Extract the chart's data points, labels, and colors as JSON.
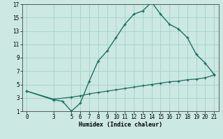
{
  "xlabel": "Humidex (Indice chaleur)",
  "bg_color": "#cbe8e3",
  "grid_color": "#a8d4cc",
  "line_color": "#1e6e62",
  "curve1_x": [
    0,
    3,
    4,
    5,
    6,
    7,
    8,
    9,
    10,
    11,
    12,
    13,
    14,
    15,
    16,
    17,
    18,
    19,
    20,
    21
  ],
  "curve1_y": [
    4.0,
    2.7,
    2.5,
    1.0,
    2.2,
    5.5,
    8.5,
    10.0,
    12.0,
    14.0,
    15.5,
    16.0,
    17.3,
    15.5,
    14.0,
    13.3,
    12.0,
    9.5,
    8.2,
    6.5
  ],
  "curve2_x": [
    0,
    3,
    5,
    6,
    7,
    8,
    9,
    10,
    11,
    12,
    13,
    14,
    15,
    16,
    17,
    18,
    19,
    20,
    21
  ],
  "curve2_y": [
    4.0,
    2.8,
    3.1,
    3.3,
    3.6,
    3.8,
    4.0,
    4.2,
    4.4,
    4.6,
    4.8,
    5.0,
    5.2,
    5.4,
    5.5,
    5.7,
    5.8,
    6.0,
    6.4
  ],
  "xlim": [
    -0.5,
    21.5
  ],
  "ylim": [
    1,
    17
  ],
  "xticks": [
    0,
    3,
    5,
    6,
    7,
    8,
    9,
    10,
    11,
    12,
    13,
    14,
    15,
    16,
    17,
    18,
    19,
    20,
    21
  ],
  "yticks": [
    1,
    3,
    5,
    7,
    9,
    11,
    13,
    15,
    17
  ],
  "tick_fontsize": 5.5,
  "xlabel_fontsize": 6.0
}
